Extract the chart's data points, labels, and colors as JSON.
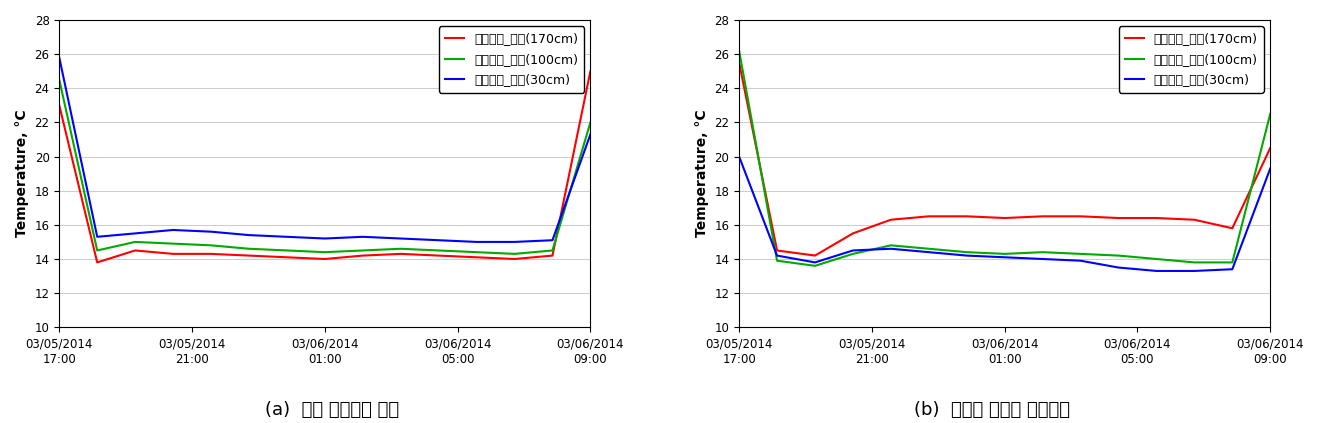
{
  "left": {
    "title": "(a)  관행 바닥덕트 난방",
    "ylabel": "Temperature, °C",
    "ylim": [
      10,
      28
    ],
    "yticks": [
      10,
      12,
      14,
      16,
      18,
      20,
      22,
      24,
      26,
      28
    ],
    "xtick_labels": [
      "03/05/2014\n17:00",
      "03/05/2014\n21:00",
      "03/06/2014\n01:00",
      "03/06/2014\n05:00",
      "03/06/2014\n09:00"
    ],
    "series": [
      {
        "label": "관행난방_상부(170cm)",
        "color": "#ff0000",
        "y": [
          23.0,
          13.8,
          14.5,
          14.3,
          14.3,
          14.2,
          14.1,
          14.0,
          14.2,
          14.3,
          14.2,
          14.1,
          14.0,
          14.2,
          25.0
        ]
      },
      {
        "label": "관행난방_중부(100cm)",
        "color": "#00aa00",
        "y": [
          24.5,
          14.5,
          15.0,
          14.9,
          14.8,
          14.6,
          14.5,
          14.4,
          14.5,
          14.6,
          14.5,
          14.4,
          14.3,
          14.5,
          22.0
        ]
      },
      {
        "label": "관행난방_하부(30cm)",
        "color": "#0000ff",
        "y": [
          25.8,
          15.3,
          15.5,
          15.7,
          15.6,
          15.4,
          15.3,
          15.2,
          15.3,
          15.2,
          15.1,
          15.0,
          15.0,
          15.1,
          21.3
        ]
      }
    ]
  },
  "right": {
    "title": "(b)  생장부 추종형 부분난방",
    "ylabel": "Temperature, °C",
    "ylim": [
      10,
      28
    ],
    "yticks": [
      10,
      12,
      14,
      16,
      18,
      20,
      22,
      24,
      26,
      28
    ],
    "xtick_labels": [
      "03/05/2014\n17:00",
      "03/05/2014\n21:00",
      "03/06/2014\n01:00",
      "03/06/2014\n05:00",
      "03/06/2014\n09:00"
    ],
    "series": [
      {
        "label": "부분난방_상부(170cm)",
        "color": "#ff0000",
        "y": [
          25.5,
          14.5,
          14.2,
          15.5,
          16.3,
          16.5,
          16.5,
          16.4,
          16.5,
          16.5,
          16.4,
          16.4,
          16.3,
          15.8,
          20.5
        ]
      },
      {
        "label": "부분난방_중부(100cm)",
        "color": "#00aa00",
        "y": [
          26.2,
          13.9,
          13.6,
          14.3,
          14.8,
          14.6,
          14.4,
          14.3,
          14.4,
          14.3,
          14.2,
          14.0,
          13.8,
          13.8,
          22.5
        ]
      },
      {
        "label": "부분난방_하부(30cm)",
        "color": "#0000ff",
        "y": [
          20.0,
          14.2,
          13.8,
          14.5,
          14.6,
          14.4,
          14.2,
          14.1,
          14.0,
          13.9,
          13.5,
          13.3,
          13.3,
          13.4,
          19.3
        ]
      }
    ]
  },
  "linewidth": 1.5,
  "legend_fontsize": 9,
  "tick_fontsize": 8.5,
  "ylabel_fontsize": 10,
  "title_fontsize": 13,
  "background_color": "#ffffff"
}
